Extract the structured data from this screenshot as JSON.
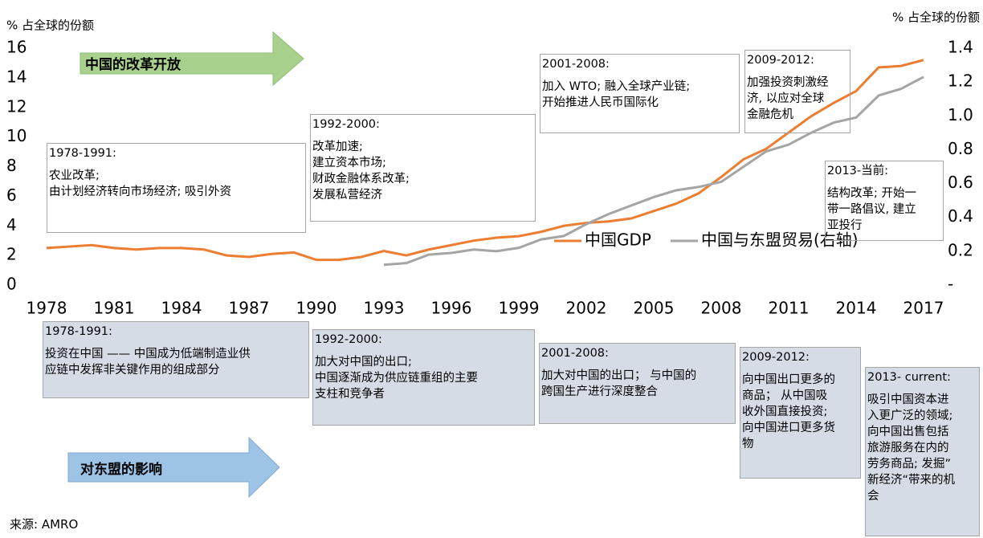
{
  "chart_data": {
    "type": "line",
    "y_label_left": "% 占全球的份额",
    "y_label_right": "% 占全球的份额",
    "x": [
      1978,
      1979,
      1980,
      1981,
      1982,
      1983,
      1984,
      1985,
      1986,
      1987,
      1988,
      1989,
      1990,
      1991,
      1992,
      1993,
      1994,
      1995,
      1996,
      1997,
      1998,
      1999,
      2000,
      2001,
      2002,
      2003,
      2004,
      2005,
      2006,
      2007,
      2008,
      2009,
      2010,
      2011,
      2012,
      2013,
      2014,
      2015,
      2016,
      2017
    ],
    "xlim": [
      1978,
      2017
    ],
    "xticks": [
      1978,
      1981,
      1984,
      1987,
      1990,
      1993,
      1996,
      1999,
      2002,
      2005,
      2008,
      2011,
      2014,
      2017
    ],
    "ylim": [
      0,
      16
    ],
    "yticks": [
      0,
      2,
      4,
      6,
      8,
      10,
      12,
      14,
      16
    ],
    "y2lim": [
      0,
      1.4
    ],
    "y2ticks": [
      {
        "value": 0,
        "label": "-"
      },
      0.2,
      0.4,
      0.6,
      0.8,
      {
        "value": 1,
        "label": "1.0"
      },
      1.2,
      1.4
    ],
    "legend": "lower right",
    "series": [
      {
        "name": "中国GDP",
        "color": "#ed7d31",
        "values": [
          2.5,
          2.6,
          2.7,
          2.5,
          2.4,
          2.5,
          2.5,
          2.4,
          2,
          1.9,
          2.1,
          2.2,
          1.7,
          1.7,
          1.9,
          2.3,
          2,
          2.4,
          2.7,
          3,
          3.2,
          3.3,
          3.6,
          4,
          4.2,
          4.3,
          4.5,
          5,
          5.5,
          6.2,
          7.3,
          8.5,
          9.2,
          10.3,
          11.4,
          12.3,
          13.1,
          14.7,
          14.8,
          15.2
        ]
      },
      {
        "name": "中国与东盟贸易(右轴)",
        "color": "#a5a5a5",
        "axis": "y2",
        "values": [
          null,
          null,
          null,
          null,
          null,
          null,
          null,
          null,
          null,
          null,
          null,
          null,
          null,
          null,
          null,
          0.12,
          0.13,
          0.18,
          0.19,
          0.21,
          0.2,
          0.22,
          0.27,
          0.29,
          0.36,
          0.42,
          0.47,
          0.52,
          0.56,
          0.58,
          0.61,
          0.7,
          0.79,
          0.83,
          0.9,
          0.96,
          0.99,
          1.12,
          1.16,
          1.23
        ]
      }
    ]
  },
  "reform_arrow": "中国的改革开放",
  "asean_arrow": "对东盟的影响",
  "reform_boxes": [
    {
      "lines": [
        "1978-1991:",
        "农业改革;",
        "由计划经济转向市场经济; 吸引外资"
      ]
    },
    {
      "lines": [
        "1992-2000:",
        "改革加速;",
        "建立资本市场;",
        "财政金融体系改革;",
        "发展私营经济"
      ]
    },
    {
      "lines": [
        "2001-2008:",
        "加入 WTO; 融入全球产业链;",
        "开始推进人民币国际化"
      ]
    },
    {
      "lines": [
        "2009-2012:",
        "加强投资刺激经",
        "济, 以应对全球",
        "金融危机"
      ]
    },
    {
      "lines": [
        "2013-当前:",
        "结构改革; 开始一",
        "带一路倡议, 建立",
        "亚投行"
      ]
    }
  ],
  "impact_boxes": [
    {
      "lines": [
        "1978-1991:",
        "投资在中国 —— 中国成为低端制造业供",
        "应链中发挥非关键作用的组成部分"
      ]
    },
    {
      "lines": [
        "1992-2000:",
        "加大对中国的出口;",
        "中国逐渐成为供应链重组的主要",
        "支柱和竞争者"
      ]
    },
    {
      "lines": [
        "2001-2008:",
        "加大对中国的出口； 与中国的",
        "跨国生产进行深度整合"
      ]
    },
    {
      "lines": [
        "2009-2012:",
        "向中国出口更多的",
        "商品； 从中国吸",
        "收外国直接投资;",
        "向中国进口更多货",
        "物"
      ]
    },
    {
      "lines": [
        "2013- current:",
        "吸引中国资本进",
        "入更广泛的领域;",
        "向中国出售包括",
        "旅游服务在内的",
        "劳务商品; 发掘”",
        "新经济“带来的机",
        "会"
      ]
    }
  ],
  "source": "来源: AMRO"
}
